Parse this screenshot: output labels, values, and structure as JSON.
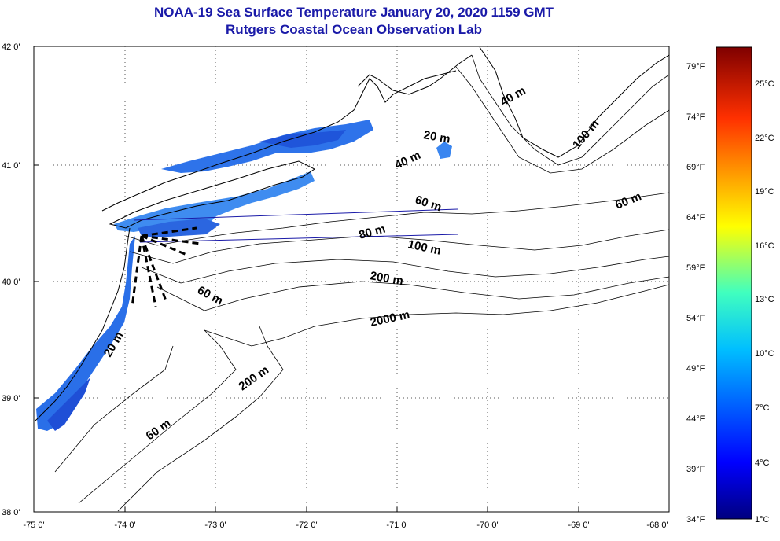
{
  "title": {
    "line1": "NOAA-19 Sea Surface Temperature January 20, 2020 1159 GMT",
    "line2": "Rutgers Coastal Ocean Observation Lab"
  },
  "axes": {
    "x_ticks": [
      "-75 0'",
      "-74 0'",
      "-73 0'",
      "-72 0'",
      "-71 0'",
      "-70 0'",
      "-69 0'",
      "-68 0'"
    ],
    "y_ticks": [
      "42 0'",
      "41 0'",
      "40 0'",
      "39 0'",
      "38 0'"
    ],
    "lon_range": [
      -75,
      -68
    ],
    "lat_range": [
      38,
      42
    ],
    "grid": "dotted"
  },
  "contour_labels": [
    "40 m",
    "100 m",
    "20 m",
    "40 m",
    "60 m",
    "60 m",
    "80 m",
    "100 m",
    "200 m",
    "2000 m",
    "60 m",
    "20 m",
    "200 m",
    "60 m"
  ],
  "colorbar": {
    "fahrenheit": [
      "79°F",
      "74°F",
      "69°F",
      "64°F",
      "59°F",
      "54°F",
      "49°F",
      "44°F",
      "39°F",
      "34°F"
    ],
    "celsius": [
      "25°C",
      "22°C",
      "19°C",
      "16°C",
      "13°C",
      "10°C",
      "7°C",
      "4°C",
      "1°C"
    ],
    "colors": [
      "#00007f",
      "#0000ff",
      "#007fff",
      "#00ffff",
      "#7fff7f",
      "#ffff00",
      "#ff7f00",
      "#ff0000",
      "#7f0000"
    ]
  }
}
